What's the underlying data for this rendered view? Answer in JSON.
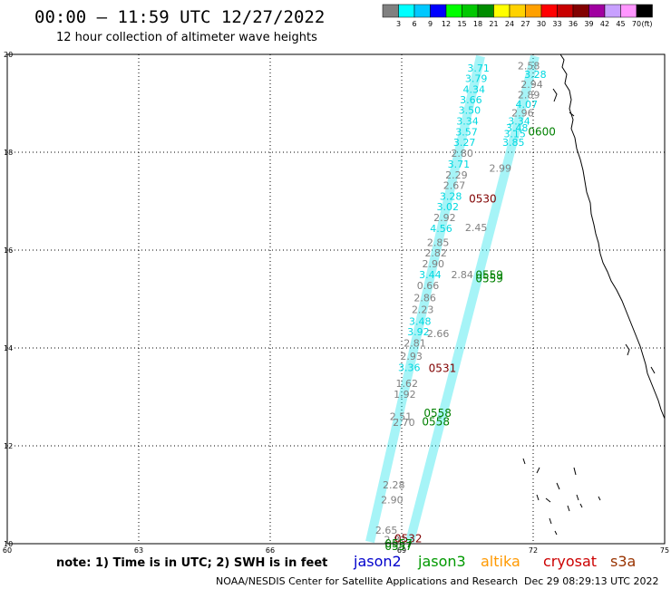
{
  "header": {
    "title": "00:00 – 11:59 UTC 12/27/2022",
    "subtitle": "12 hour collection of altimeter wave heights"
  },
  "legend": {
    "unit": "(ft)",
    "bins": [
      {
        "label": "3",
        "color": "#808080"
      },
      {
        "label": "6",
        "color": "#00ffff"
      },
      {
        "label": "9",
        "color": "#00c8ff"
      },
      {
        "label": "12",
        "color": "#0000ff"
      },
      {
        "label": "15",
        "color": "#00ff00"
      },
      {
        "label": "18",
        "color": "#00c800"
      },
      {
        "label": "21",
        "color": "#008c00"
      },
      {
        "label": "24",
        "color": "#ffff00"
      },
      {
        "label": "27",
        "color": "#ffd200"
      },
      {
        "label": "30",
        "color": "#ffa000"
      },
      {
        "label": "33",
        "color": "#ff0000"
      },
      {
        "label": "36",
        "color": "#c80000"
      },
      {
        "label": "39",
        "color": "#820000"
      },
      {
        "label": "42",
        "color": "#a000a0"
      },
      {
        "label": "45",
        "color": "#c8a0ff"
      },
      {
        "label": "70",
        "color": "#ff96ff"
      },
      {
        "label": "",
        "color": "#000000"
      }
    ]
  },
  "map": {
    "lon_range": [
      60,
      75
    ],
    "lat_range": [
      10,
      20
    ],
    "lon_ticks": [
      "60",
      "63",
      "66",
      "69",
      "72",
      "75"
    ],
    "lat_ticks": [
      "20",
      "18",
      "16",
      "14",
      "12",
      "10"
    ],
    "grid": "dotted",
    "colors": {
      "gray": "#808080",
      "cyan": "#00d8e0",
      "green": "#008000",
      "darkred": "#800000"
    }
  },
  "track_labels": [
    {
      "text": "2.58",
      "lon": 71.9,
      "lat": 19.77,
      "c": "gray"
    },
    {
      "text": "3.71",
      "lon": 70.75,
      "lat": 19.72,
      "c": "cyan"
    },
    {
      "text": "3.28",
      "lon": 72.05,
      "lat": 19.59,
      "c": "cyan"
    },
    {
      "text": "3.79",
      "lon": 70.7,
      "lat": 19.51,
      "c": "cyan"
    },
    {
      "text": "2.94",
      "lon": 71.97,
      "lat": 19.39,
      "c": "gray"
    },
    {
      "text": "4.34",
      "lon": 70.65,
      "lat": 19.29,
      "c": "cyan"
    },
    {
      "text": "2.89",
      "lon": 71.9,
      "lat": 19.18,
      "c": "gray"
    },
    {
      "text": "3.66",
      "lon": 70.58,
      "lat": 19.07,
      "c": "cyan"
    },
    {
      "text": "4.07",
      "lon": 71.85,
      "lat": 18.98,
      "c": "cyan"
    },
    {
      "text": "3.50",
      "lon": 70.55,
      "lat": 18.86,
      "c": "cyan"
    },
    {
      "text": "2.96",
      "lon": 71.76,
      "lat": 18.81,
      "c": "gray"
    },
    {
      "text": "3.34",
      "lon": 70.5,
      "lat": 18.64,
      "c": "cyan"
    },
    {
      "text": "3.34",
      "lon": 71.68,
      "lat": 18.64,
      "c": "cyan"
    },
    {
      "text": "3.48",
      "lon": 71.63,
      "lat": 18.5,
      "c": "cyan"
    },
    {
      "text": "3.57",
      "lon": 70.48,
      "lat": 18.42,
      "c": "cyan"
    },
    {
      "text": "3.15",
      "lon": 71.58,
      "lat": 18.38,
      "c": "cyan"
    },
    {
      "text": "3.85",
      "lon": 71.55,
      "lat": 18.2,
      "c": "cyan"
    },
    {
      "text": "3.27",
      "lon": 70.43,
      "lat": 18.2,
      "c": "cyan"
    },
    {
      "text": "2.80",
      "lon": 70.38,
      "lat": 17.98,
      "c": "gray"
    },
    {
      "text": "3.71",
      "lon": 70.3,
      "lat": 17.76,
      "c": "cyan"
    },
    {
      "text": "2.99",
      "lon": 71.25,
      "lat": 17.68,
      "c": "gray"
    },
    {
      "text": "2.29",
      "lon": 70.25,
      "lat": 17.54,
      "c": "gray"
    },
    {
      "text": "2.67",
      "lon": 70.2,
      "lat": 17.32,
      "c": "gray"
    },
    {
      "text": "3.28",
      "lon": 70.12,
      "lat": 17.1,
      "c": "cyan"
    },
    {
      "text": "3.02",
      "lon": 70.05,
      "lat": 16.89,
      "c": "cyan"
    },
    {
      "text": "2.92",
      "lon": 69.98,
      "lat": 16.67,
      "c": "gray"
    },
    {
      "text": "2.45",
      "lon": 70.7,
      "lat": 16.46,
      "c": "gray"
    },
    {
      "text": "4.56",
      "lon": 69.9,
      "lat": 16.44,
      "c": "cyan"
    },
    {
      "text": "2.85",
      "lon": 69.83,
      "lat": 16.16,
      "c": "gray"
    },
    {
      "text": "2.82",
      "lon": 69.78,
      "lat": 15.94,
      "c": "gray"
    },
    {
      "text": "2.90",
      "lon": 69.72,
      "lat": 15.72,
      "c": "gray"
    },
    {
      "text": "3.44",
      "lon": 69.65,
      "lat": 15.5,
      "c": "cyan"
    },
    {
      "text": "2.84",
      "lon": 70.38,
      "lat": 15.5,
      "c": "gray"
    },
    {
      "text": "0.66",
      "lon": 69.6,
      "lat": 15.28,
      "c": "gray"
    },
    {
      "text": "2.86",
      "lon": 69.53,
      "lat": 15.03,
      "c": "gray"
    },
    {
      "text": "2.23",
      "lon": 69.48,
      "lat": 14.79,
      "c": "gray"
    },
    {
      "text": "3.48",
      "lon": 69.42,
      "lat": 14.55,
      "c": "cyan"
    },
    {
      "text": "3.92",
      "lon": 69.38,
      "lat": 14.33,
      "c": "cyan"
    },
    {
      "text": "2.66",
      "lon": 69.83,
      "lat": 14.3,
      "c": "gray"
    },
    {
      "text": "2.81",
      "lon": 69.3,
      "lat": 14.1,
      "c": "gray"
    },
    {
      "text": "2.93",
      "lon": 69.22,
      "lat": 13.83,
      "c": "gray"
    },
    {
      "text": "3.36",
      "lon": 69.17,
      "lat": 13.6,
      "c": "cyan"
    },
    {
      "text": "1.62",
      "lon": 69.12,
      "lat": 13.28,
      "c": "gray"
    },
    {
      "text": "1.92",
      "lon": 69.07,
      "lat": 13.06,
      "c": "gray"
    },
    {
      "text": "2.51",
      "lon": 68.98,
      "lat": 12.6,
      "c": "gray"
    },
    {
      "text": "2.70",
      "lon": 69.05,
      "lat": 12.48,
      "c": "gray"
    },
    {
      "text": "2.28",
      "lon": 68.82,
      "lat": 11.2,
      "c": "gray"
    },
    {
      "text": "2.90",
      "lon": 68.78,
      "lat": 10.9,
      "c": "gray"
    },
    {
      "text": "2.65",
      "lon": 68.65,
      "lat": 10.28,
      "c": "gray"
    },
    {
      "text": "2.83",
      "lon": 68.85,
      "lat": 10.08,
      "c": "gray"
    }
  ],
  "time_labels": [
    {
      "text": "0600",
      "lon": 72.2,
      "lat": 18.42,
      "c": "green"
    },
    {
      "text": "0530",
      "lon": 70.85,
      "lat": 17.05,
      "c": "darkred"
    },
    {
      "text": "0559",
      "lon": 71.0,
      "lat": 15.49,
      "c": "green"
    },
    {
      "text": "0559",
      "lon": 71.0,
      "lat": 15.42,
      "c": "green"
    },
    {
      "text": "0531",
      "lon": 69.93,
      "lat": 13.58,
      "c": "darkred"
    },
    {
      "text": "0558",
      "lon": 69.82,
      "lat": 12.67,
      "c": "green"
    },
    {
      "text": "0558",
      "lon": 69.78,
      "lat": 12.49,
      "c": "green"
    },
    {
      "text": "0532",
      "lon": 69.15,
      "lat": 10.1,
      "c": "darkred"
    },
    {
      "text": "0557",
      "lon": 68.93,
      "lat": 10.0,
      "c": "green"
    },
    {
      "text": "0557",
      "lon": 68.93,
      "lat": 9.94,
      "c": "green"
    }
  ],
  "footer": {
    "note": "note: 1) Time is in UTC; 2) SWH is in feet",
    "missions": [
      {
        "name": "jason2",
        "color": "#0000cc"
      },
      {
        "name": "jason3",
        "color": "#009900"
      },
      {
        "name": "altika",
        "color": "#ff9900"
      },
      {
        "name": "cryosat",
        "color": "#cc0000"
      },
      {
        "name": "s3a",
        "color": "#993300"
      }
    ],
    "credit": "NOAA/NESDIS Center for Satellite Applications and Research",
    "timestamp": "Dec 29 08:29:13 UTC 2022"
  }
}
